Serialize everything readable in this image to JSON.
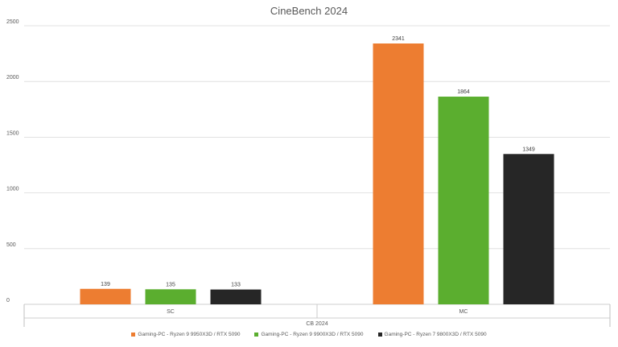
{
  "chart_data": {
    "type": "bar",
    "title": "CineBench 2024",
    "categories": [
      "SC",
      "MC"
    ],
    "group_label": "CB 2024",
    "series": [
      {
        "name": "Gaming-PC - Ryzen 9 9950X3D / RTX 5090",
        "color": "#ED7D31",
        "values": [
          139,
          2341
        ]
      },
      {
        "name": "Gaming-PC - Ryzen 9 9900X3D / RTX 5090",
        "color": "#5BAE2F",
        "values": [
          135,
          1864
        ]
      },
      {
        "name": "Gaming-PC - Ryzen 7 9800X3D / RTX 5090",
        "color": "#262626",
        "values": [
          133,
          1349
        ]
      }
    ],
    "ylim": [
      0,
      2500
    ],
    "yticks": [
      0,
      500,
      1000,
      1500,
      2000,
      2500
    ],
    "xlabel": "",
    "ylabel": "",
    "grid": true,
    "legend_position": "bottom"
  }
}
